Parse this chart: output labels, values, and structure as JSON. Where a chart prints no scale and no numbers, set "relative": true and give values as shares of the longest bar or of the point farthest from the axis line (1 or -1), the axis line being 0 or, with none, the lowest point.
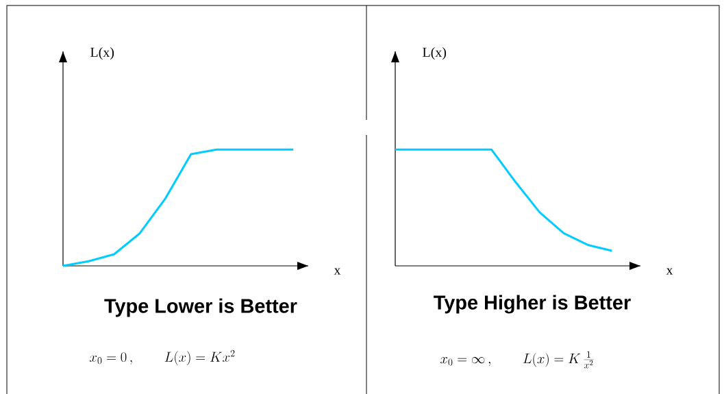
{
  "chart_data": [
    {
      "type": "line",
      "relative": true,
      "title": "Type Lower is Better",
      "xlabel": "x",
      "ylabel": "L(x)",
      "categories": [
        null,
        null,
        null,
        null,
        null,
        null,
        null,
        null,
        null,
        null
      ],
      "values": [
        0,
        0.04,
        0.1,
        0.28,
        0.58,
        0.96,
        1,
        1,
        1,
        1
      ],
      "color": "#00ccff",
      "annotations": [
        "x_0 = 0\\,,\\qquad L(x) = Kx^{2}"
      ]
    },
    {
      "type": "line",
      "relative": true,
      "title": "Type Higher is Better",
      "xlabel": "x",
      "ylabel": "L(x)",
      "categories": [
        null,
        null,
        null,
        null,
        null,
        null,
        null,
        null,
        null,
        null
      ],
      "values": [
        1,
        1,
        1,
        1,
        1,
        0.72,
        0.46,
        0.28,
        0.18,
        0.13
      ],
      "color": "#00ccff",
      "annotations": [
        "x_0 = \\infty\\,,\\qquad L(x) = K\\,\\frac{1}{x^{2}}"
      ]
    }
  ]
}
